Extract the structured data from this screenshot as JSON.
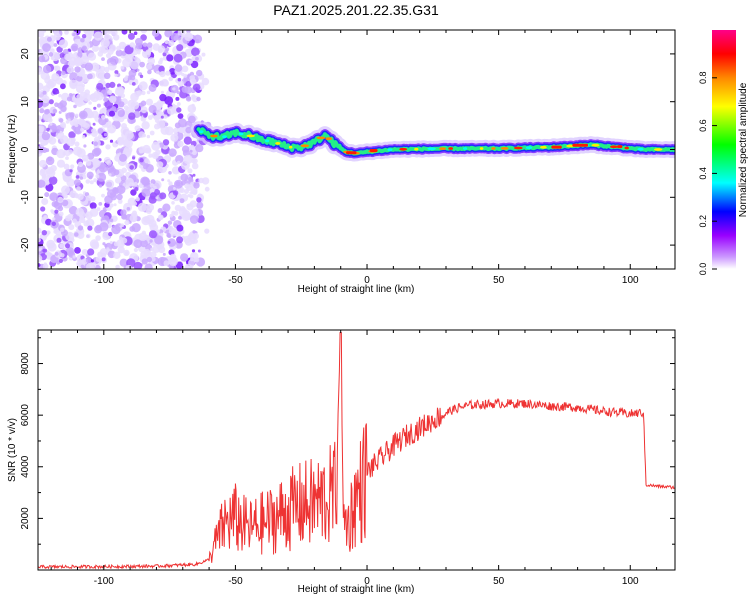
{
  "title": "PAZ1.2025.201.22.35.G31",
  "chart_data": [
    {
      "type": "heatmap",
      "xlabel": "Height of straight line (km)",
      "ylabel": "Frequency (Hz)",
      "xlim": [
        -125,
        117
      ],
      "ylim": [
        -25,
        25
      ],
      "xticks": [
        -100,
        -50,
        0,
        50,
        100
      ],
      "yticks": [
        -20,
        -10,
        0,
        10,
        20
      ],
      "colorbar": {
        "label": "Normalized spectral amplitude",
        "range": [
          0,
          1
        ],
        "ticks": [
          0.0,
          0.2,
          0.4,
          0.6,
          0.8
        ],
        "colors": [
          "#ffffff",
          "#9966ff",
          "#0000ff",
          "#00ffff",
          "#00ff00",
          "#ffff00",
          "#ff8800",
          "#ff0000",
          "#ff0088"
        ]
      },
      "noise_region": {
        "x_from": -125,
        "x_to": -63,
        "amplitude": 0.1
      },
      "ridge": [
        {
          "x": -64,
          "f": 4.0
        },
        {
          "x": -60,
          "f": 3.0
        },
        {
          "x": -55,
          "f": 2.5
        },
        {
          "x": -50,
          "f": 3.5
        },
        {
          "x": -45,
          "f": 3.0
        },
        {
          "x": -40,
          "f": 2.0
        },
        {
          "x": -35,
          "f": 1.5
        },
        {
          "x": -30,
          "f": 0.5
        },
        {
          "x": -25,
          "f": 0.5
        },
        {
          "x": -20,
          "f": 1.5
        },
        {
          "x": -16,
          "f": 3.0
        },
        {
          "x": -12,
          "f": 1.0
        },
        {
          "x": -8,
          "f": -0.5
        },
        {
          "x": -4,
          "f": -0.8
        },
        {
          "x": 0,
          "f": -0.5
        },
        {
          "x": 10,
          "f": 0.0
        },
        {
          "x": 30,
          "f": 0.2
        },
        {
          "x": 50,
          "f": 0.2
        },
        {
          "x": 70,
          "f": 0.5
        },
        {
          "x": 85,
          "f": 1.0
        },
        {
          "x": 95,
          "f": 0.5
        },
        {
          "x": 105,
          "f": 0.0
        },
        {
          "x": 117,
          "f": 0.0
        }
      ]
    },
    {
      "type": "line",
      "xlabel": "Height of straight line (km)",
      "ylabel": "SNR (10 * v/v)",
      "xlim": [
        -125,
        117
      ],
      "ylim": [
        0,
        9300
      ],
      "xticks": [
        -100,
        -50,
        0,
        50,
        100
      ],
      "yticks": [
        2000,
        4000,
        6000,
        8000
      ],
      "color": "#ee3333",
      "series": [
        {
          "points": [
            [
              -125,
              120
            ],
            [
              -100,
              130
            ],
            [
              -80,
              150
            ],
            [
              -65,
              220
            ],
            [
              -60,
              400
            ],
            [
              -57,
              1200
            ],
            [
              -54,
              1800
            ],
            [
              -50,
              2000
            ],
            [
              -45,
              1600
            ],
            [
              -40,
              1800
            ],
            [
              -35,
              2000
            ],
            [
              -30,
              2300
            ],
            [
              -25,
              2500
            ],
            [
              -20,
              2600
            ],
            [
              -15,
              2800
            ],
            [
              -12,
              3000
            ],
            [
              -10,
              9200
            ],
            [
              -9,
              2000
            ],
            [
              -7,
              1800
            ],
            [
              -5,
              2600
            ],
            [
              -2,
              3200
            ],
            [
              0,
              3800
            ],
            [
              5,
              4300
            ],
            [
              10,
              4800
            ],
            [
              15,
              5200
            ],
            [
              20,
              5500
            ],
            [
              25,
              5800
            ],
            [
              30,
              6100
            ],
            [
              35,
              6300
            ],
            [
              40,
              6400
            ],
            [
              50,
              6450
            ],
            [
              60,
              6450
            ],
            [
              70,
              6350
            ],
            [
              80,
              6300
            ],
            [
              90,
              6150
            ],
            [
              100,
              6050
            ],
            [
              105,
              6100
            ],
            [
              106,
              3300
            ],
            [
              110,
              3250
            ],
            [
              117,
              3200
            ]
          ]
        }
      ]
    }
  ]
}
